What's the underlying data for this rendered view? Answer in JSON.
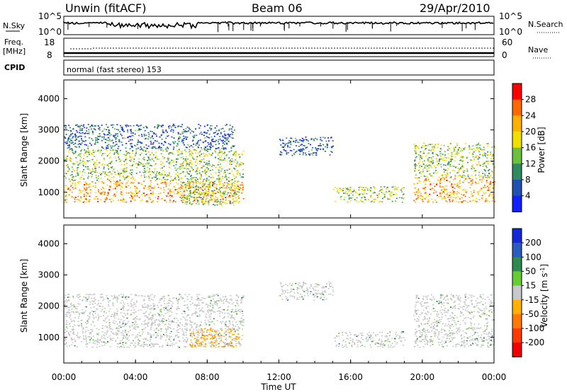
{
  "header": {
    "station": "Unwin (fitACF)",
    "beam": "Beam 06",
    "date": "29/Apr/2010"
  },
  "strip_labels": {
    "nsky": "N.Sky",
    "nsearch": "N.Search",
    "freq_line1": "Freq.",
    "freq_line2": "[MHz]",
    "nave": "Nave",
    "cpid": "CPID",
    "cpid_value": "normal (fast stereo) 153",
    "noise_ticks_left": [
      "10^5",
      "10^0"
    ],
    "noise_ticks_right": [
      "10^5",
      "10^0"
    ],
    "freq_ticks": [
      "18",
      "8"
    ],
    "nave_ticks": [
      "60",
      "0"
    ]
  },
  "chart_data": [
    {
      "type": "heatmap",
      "panel": "power",
      "ylabel": "Slant Range [km]",
      "xlabel": "Time UT",
      "x_ticks": [
        "00:00",
        "04:00",
        "08:00",
        "12:00",
        "16:00",
        "20:00",
        "00:00"
      ],
      "x_range_hours": [
        0,
        24
      ],
      "y_ticks": [
        1000,
        2000,
        3000,
        4000
      ],
      "ylim": [
        180,
        4600
      ],
      "colorbar": {
        "label": "Power [dB]",
        "ticks": [
          4,
          8,
          12,
          16,
          20,
          24,
          28
        ],
        "range": [
          0,
          32
        ],
        "colors": [
          "#1020ff",
          "#2050b0",
          "#2e8a60",
          "#6cc040",
          "#f0e000",
          "#ffb000",
          "#ff6a00",
          "#ff0000"
        ]
      },
      "scatter_regions": [
        {
          "t": [
            0.0,
            10.0
          ],
          "r": [
            700,
            1400
          ],
          "level": "high"
        },
        {
          "t": [
            0.0,
            10.0
          ],
          "r": [
            1400,
            2400
          ],
          "level": "mid"
        },
        {
          "t": [
            0.0,
            9.5
          ],
          "r": [
            2400,
            3200
          ],
          "level": "low"
        },
        {
          "t": [
            6.5,
            9.8
          ],
          "r": [
            600,
            1400
          ],
          "level": "mid"
        },
        {
          "t": [
            12.0,
            15.0
          ],
          "r": [
            2200,
            2800
          ],
          "level": "low"
        },
        {
          "t": [
            15.0,
            19.0
          ],
          "r": [
            700,
            1200
          ],
          "level": "mid"
        },
        {
          "t": [
            19.5,
            24.0
          ],
          "r": [
            700,
            1500
          ],
          "level": "high"
        },
        {
          "t": [
            19.5,
            24.0
          ],
          "r": [
            1500,
            2600
          ],
          "level": "mid"
        }
      ]
    },
    {
      "type": "heatmap",
      "panel": "velocity",
      "ylabel": "Slant Range [km]",
      "xlabel": "Time UT",
      "x_ticks": [
        "00:00",
        "04:00",
        "08:00",
        "12:00",
        "16:00",
        "20:00",
        "00:00"
      ],
      "x_range_hours": [
        0,
        24
      ],
      "y_ticks": [
        1000,
        2000,
        3000,
        4000
      ],
      "ylim": [
        180,
        4600
      ],
      "colorbar": {
        "label": "Velocity [m s^-1]",
        "ticks": [
          200,
          100,
          50,
          15,
          -15,
          -50,
          -100,
          -200
        ],
        "colors": [
          "#1428d8",
          "#2c5cc0",
          "#2e8a50",
          "#66cc33",
          "#c8c8c8",
          "#ffb000",
          "#ff7a00",
          "#ff3a00",
          "#ee0000"
        ]
      },
      "scatter_regions": [
        {
          "t": [
            0.0,
            10.0
          ],
          "r": [
            700,
            1400
          ],
          "level": "ground"
        },
        {
          "t": [
            0.0,
            10.0
          ],
          "r": [
            1400,
            2400
          ],
          "level": "ground"
        },
        {
          "t": [
            7.0,
            9.8
          ],
          "r": [
            700,
            1300
          ],
          "level": "negative"
        },
        {
          "t": [
            12.0,
            15.0
          ],
          "r": [
            2200,
            2800
          ],
          "level": "ground"
        },
        {
          "t": [
            15.0,
            19.0
          ],
          "r": [
            700,
            1200
          ],
          "level": "ground"
        },
        {
          "t": [
            19.5,
            24.0
          ],
          "r": [
            700,
            2400
          ],
          "level": "ground"
        }
      ]
    }
  ]
}
